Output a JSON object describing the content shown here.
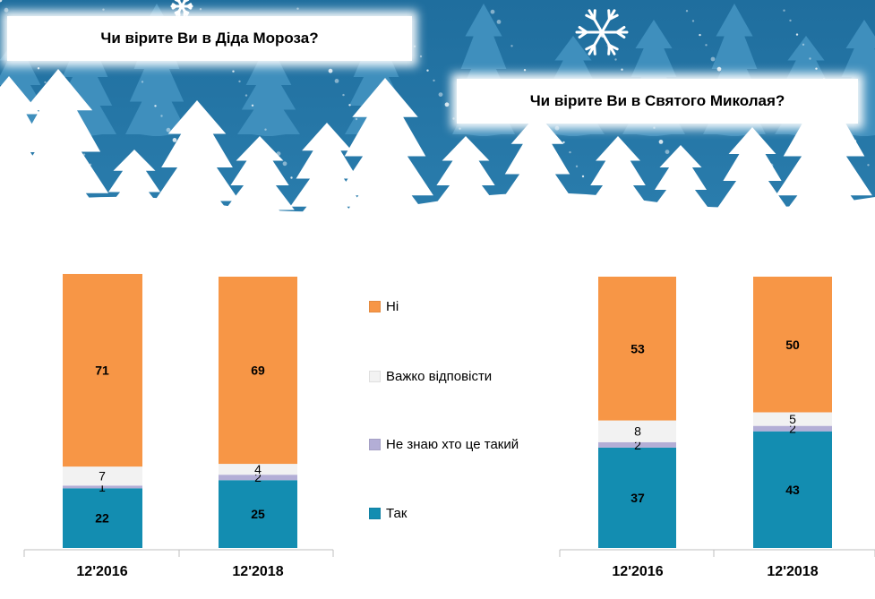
{
  "titles": {
    "left": "Чи вірите Ви в Діда Мороза?",
    "right": "Чи вірите Ви в Святого Миколая?"
  },
  "colors": {
    "banner_bg": "#2b7eae",
    "tree": "#ffffff",
    "tak": "#138db1",
    "ne_znayu": "#b3aed6",
    "vazhko": "#f2f2f2",
    "ni": "#f79646"
  },
  "legend": [
    {
      "label": "Ні",
      "color": "#f79646"
    },
    {
      "label": "Важко відповісти",
      "color": "#f2f2f2"
    },
    {
      "label": "Не знаю хто це такий",
      "color": "#b3aed6"
    },
    {
      "label": "Так",
      "color": "#138db1"
    }
  ],
  "chart_data": [
    {
      "type": "bar",
      "stacked": true,
      "title": "Чи вірите Ви в Діда Мороза?",
      "categories": [
        "12'2016",
        "12'2018"
      ],
      "ylim": [
        0,
        100
      ],
      "series": [
        {
          "name": "Так",
          "color": "#138db1",
          "values": [
            22,
            25
          ]
        },
        {
          "name": "Не знаю хто це такий",
          "color": "#b3aed6",
          "values": [
            1,
            2
          ]
        },
        {
          "name": "Важко відповісти",
          "color": "#f2f2f2",
          "values": [
            7,
            4
          ]
        },
        {
          "name": "Ні",
          "color": "#f79646",
          "values": [
            71,
            69
          ]
        }
      ]
    },
    {
      "type": "bar",
      "stacked": true,
      "title": "Чи вірите Ви в Святого Миколая?",
      "categories": [
        "12'2016",
        "12'2018"
      ],
      "ylim": [
        0,
        100
      ],
      "series": [
        {
          "name": "Так",
          "color": "#138db1",
          "values": [
            37,
            43
          ]
        },
        {
          "name": "Не знаю хто це такий",
          "color": "#b3aed6",
          "values": [
            2,
            2
          ]
        },
        {
          "name": "Важко відповісти",
          "color": "#f2f2f2",
          "values": [
            8,
            5
          ]
        },
        {
          "name": "Ні",
          "color": "#f79646",
          "values": [
            53,
            50
          ]
        }
      ]
    }
  ]
}
